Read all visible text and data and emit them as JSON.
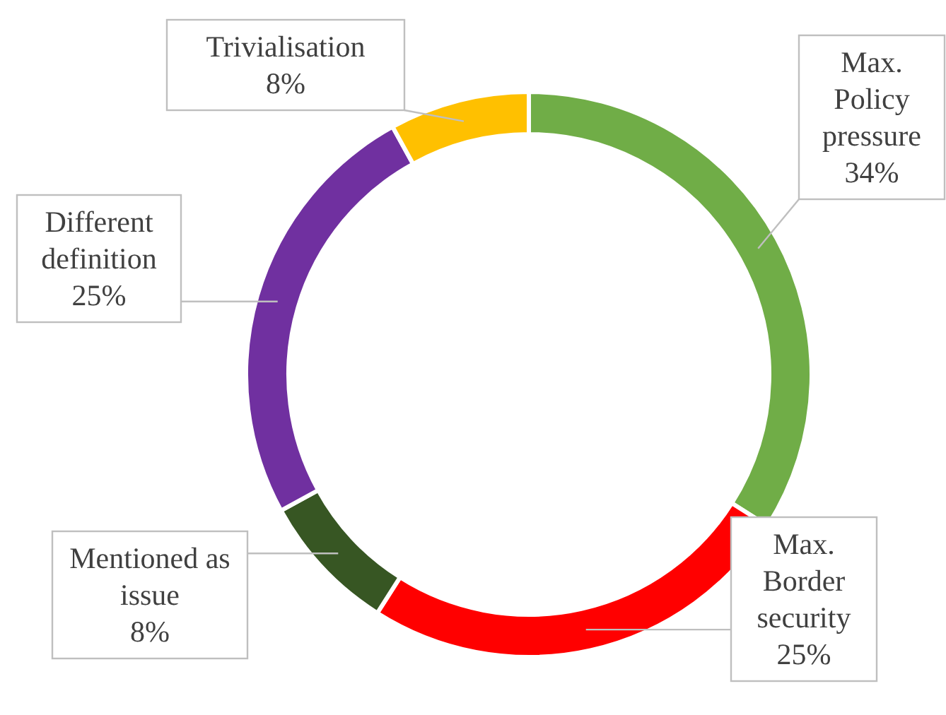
{
  "chart_data": {
    "type": "donut",
    "categories": [
      "Max. Policy pressure",
      "Max. Border security",
      "Mentioned as issue",
      "Different definition",
      "Trivialisation"
    ],
    "values": [
      34,
      25,
      8,
      25,
      8
    ],
    "value_labels": [
      "34%",
      "25%",
      "8%",
      "25%",
      "8%"
    ],
    "colors": [
      "#70ad47",
      "#ff0000",
      "#375623",
      "#7030a0",
      "#ffc000"
    ],
    "legend": false
  }
}
